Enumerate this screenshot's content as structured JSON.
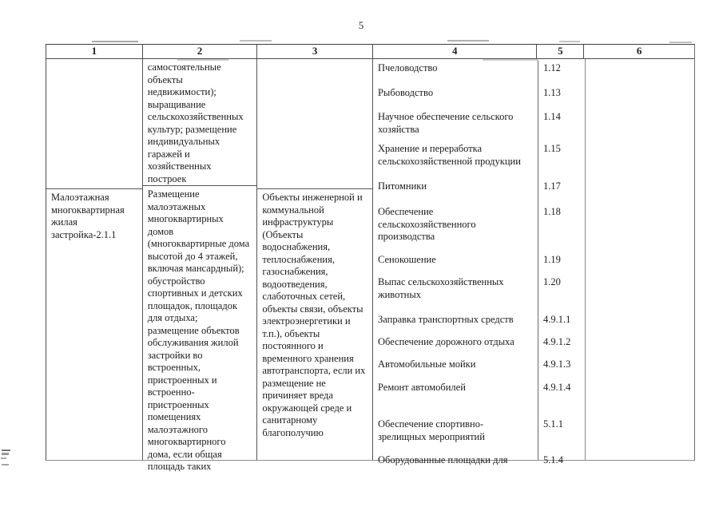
{
  "page_number": "5",
  "table": {
    "headers": [
      "1",
      "2",
      "3",
      "4",
      "5",
      "6"
    ],
    "rows": {
      "r1": {
        "col1": "",
        "col2": "самостоятельные объекты недвижимости); выращивание сельскохозяйственных культур; размещение индивидуальных гаражей и хозяйственных построек",
        "col3": ""
      },
      "r2": {
        "col1": "Малоэтажная многоквартирная жилая застройка-2.1.1",
        "col2": "Размещение малоэтажных многоквартирных домов (многоквартирные дома высотой до 4 этажей, включая мансардный); обустройство спортивных и детских площадок, площадок для отдыха; размещение объектов обслуживания жилой застройки во встроенных, пристроенных и встроенно-пристроенных помещениях малоэтажного многоквартирного дома, если общая площадь таких",
        "col3": "Объекты инженерной и коммунальной инфраструктуры (Объекты водоснабжения, теплоснабжения, газоснабжения, водоотведения, слаботочных сетей, объекты связи, объекты электроэнергетики и т.п.), объекты постоянного и временного хранения автотранспорта, если их размещение не причиняет вреда окружающей среде и санитарному благополучию"
      }
    },
    "usage_items": [
      {
        "name": "Пчеловодство",
        "code": "1.12"
      },
      {
        "name": "Рыбоводство",
        "code": "1.13"
      },
      {
        "name": "Научное обеспечение сельского хозяйства",
        "code": "1.14"
      },
      {
        "name": "Хранение и переработка сельскохозяйственной продукции",
        "code": "1.15"
      },
      {
        "name": "Питомники",
        "code": "1.17"
      },
      {
        "name": "Обеспечение сельскохозяйственного производства",
        "code": "1.18"
      },
      {
        "name": "Сенокошение",
        "code": "1.19"
      },
      {
        "name": "Выпас сельскохозяйственных животных",
        "code": "1.20"
      },
      {
        "name": "Заправка транспортных средств",
        "code": "4.9.1.1"
      },
      {
        "name": "Обеспечение дорожного отдыха",
        "code": "4.9.1.2"
      },
      {
        "name": "Автомобильные мойки",
        "code": "4.9.1.3"
      },
      {
        "name": "Ремонт автомобилей",
        "code": "4.9.1.4"
      },
      {
        "name": "Обеспечение спортивно-зрелищных мероприятий",
        "code": "5.1.1"
      },
      {
        "name": "Оборудованные площадки для",
        "code": "5.1.4"
      }
    ]
  }
}
